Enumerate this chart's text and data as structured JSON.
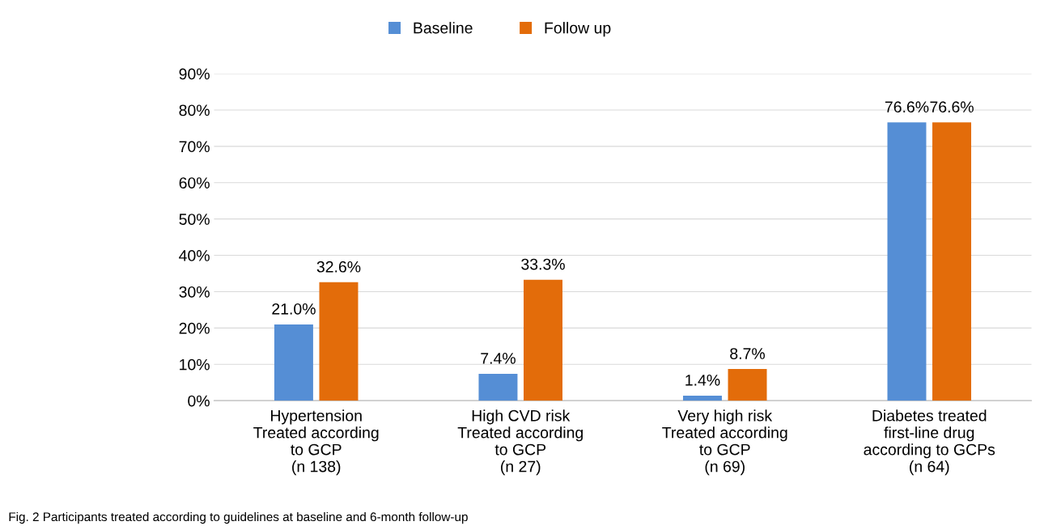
{
  "chart_data": {
    "type": "bar",
    "categories": [
      "Hypertension\nTreated according\nto GCP\n(n 138)",
      "High CVD risk\nTreated according\nto GCP\n(n 27)",
      "Very high risk\nTreated according\nto GCP\n(n 69)",
      "Diabetes treated\nfirst-line drug\naccording to GCPs\n(n 64)"
    ],
    "series": [
      {
        "name": "Baseline",
        "color": "#558ed5",
        "values": [
          21.0,
          7.4,
          1.4,
          76.6
        ],
        "value_labels": [
          "21.0%",
          "7.4%",
          "1.4%",
          "76.6%"
        ]
      },
      {
        "name": "Follow up",
        "color": "#e36c0a",
        "values": [
          32.6,
          33.3,
          8.7,
          76.6
        ],
        "value_labels": [
          "32.6%",
          "33.3%",
          "8.7%",
          "76.6%"
        ]
      }
    ],
    "ylim": [
      0,
      90
    ],
    "yticks": [
      {
        "value": 0,
        "label": "0%"
      },
      {
        "value": 10,
        "label": "10%"
      },
      {
        "value": 20,
        "label": "20%"
      },
      {
        "value": 30,
        "label": "30%"
      },
      {
        "value": 40,
        "label": "40%"
      },
      {
        "value": 50,
        "label": "50%"
      },
      {
        "value": 60,
        "label": "60%"
      },
      {
        "value": 70,
        "label": "70%"
      },
      {
        "value": 80,
        "label": "80%"
      },
      {
        "value": 90,
        "label": "90%"
      }
    ],
    "grid": "y",
    "legend": "top",
    "annotations": [
      "Fig. 2 Participants treated according to guidelines at baseline and 6-month follow-up"
    ]
  }
}
